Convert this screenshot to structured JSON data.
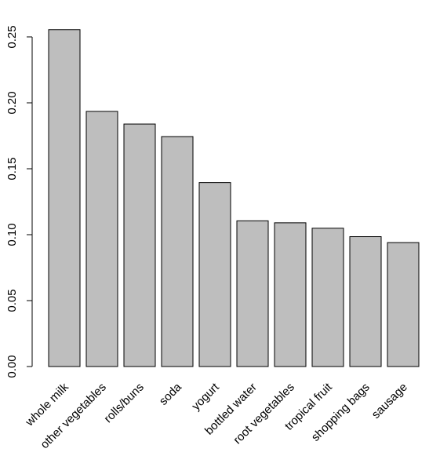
{
  "chart_data": {
    "type": "bar",
    "title": "",
    "xlabel": "",
    "ylabel": "",
    "categories": [
      "whole milk",
      "other vegetables",
      "rolls/buns",
      "soda",
      "yogurt",
      "bottled water",
      "root vegetables",
      "tropical fruit",
      "shopping bags",
      "sausage"
    ],
    "values": [
      0.2555,
      0.1935,
      0.1839,
      0.1744,
      0.1395,
      0.1105,
      0.109,
      0.1049,
      0.0985,
      0.094
    ],
    "ylim": [
      0,
      0.26
    ],
    "yticks": [
      0.0,
      0.05,
      0.1,
      0.15,
      0.2,
      0.25
    ],
    "ytick_labels": [
      "0.00",
      "0.05",
      "0.10",
      "0.15",
      "0.20",
      "0.25"
    ],
    "bar_color": "#bebebe",
    "border_color": "#000000",
    "grid": false,
    "legend": "none"
  }
}
